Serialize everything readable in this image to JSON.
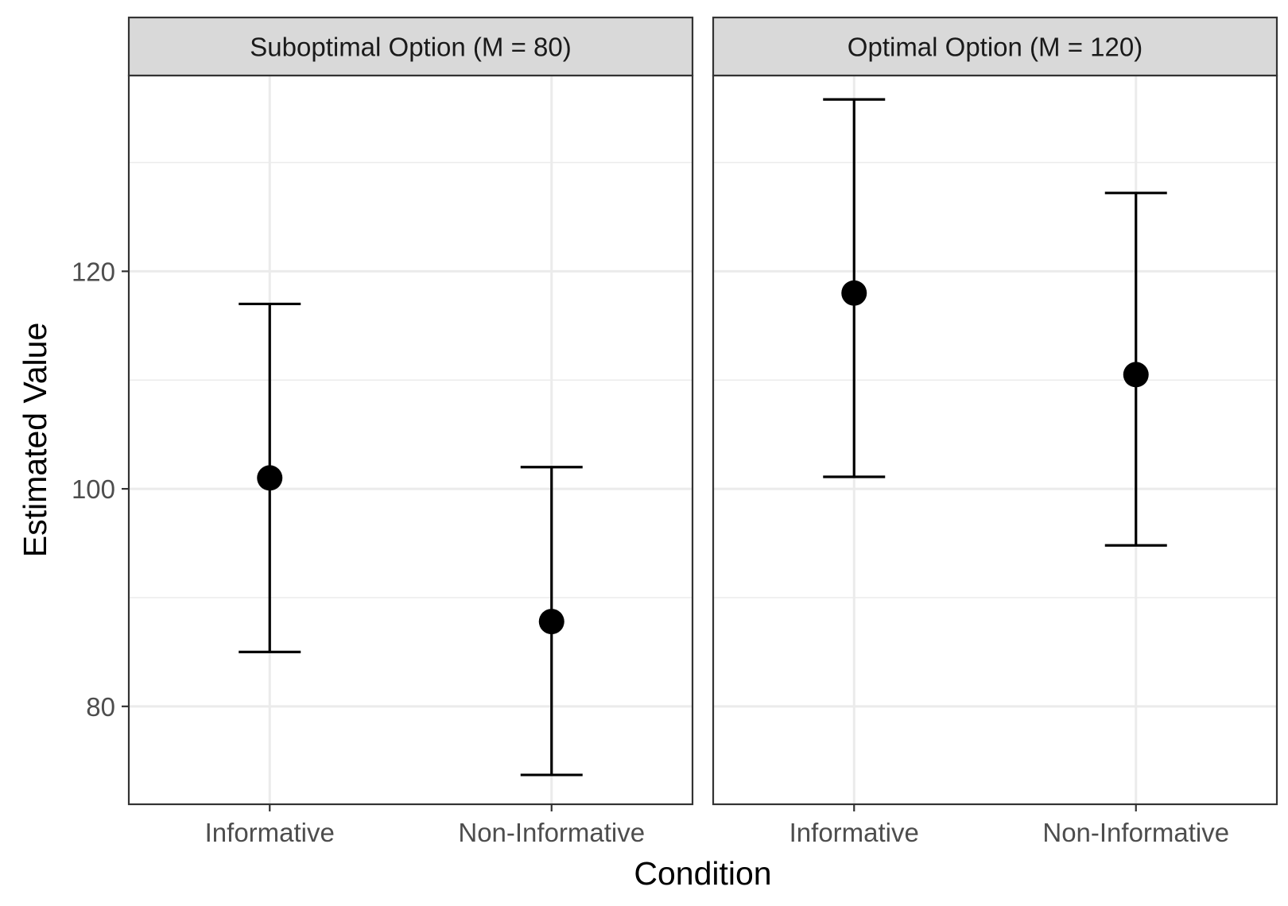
{
  "chart_data": {
    "type": "scatter",
    "geom": "point-errorbar",
    "xlabel": "Condition",
    "ylabel": "Estimated Value",
    "categories": [
      "Informative",
      "Non-Informative"
    ],
    "y_ticks": [
      80,
      100,
      120
    ],
    "ylim": [
      71,
      138
    ],
    "grid": true,
    "legend": "none",
    "facets": [
      {
        "label": "Suboptimal Option (M = 80)",
        "points": [
          {
            "x": "Informative",
            "y": 101,
            "ymin": 85,
            "ymax": 117
          },
          {
            "x": "Non-Informative",
            "y": 87.8,
            "ymin": 73.7,
            "ymax": 102
          }
        ]
      },
      {
        "label": "Optimal Option (M = 120)",
        "points": [
          {
            "x": "Informative",
            "y": 118,
            "ymin": 101.1,
            "ymax": 135.8
          },
          {
            "x": "Non-Informative",
            "y": 110.5,
            "ymin": 94.8,
            "ymax": 127.2
          }
        ]
      }
    ]
  }
}
